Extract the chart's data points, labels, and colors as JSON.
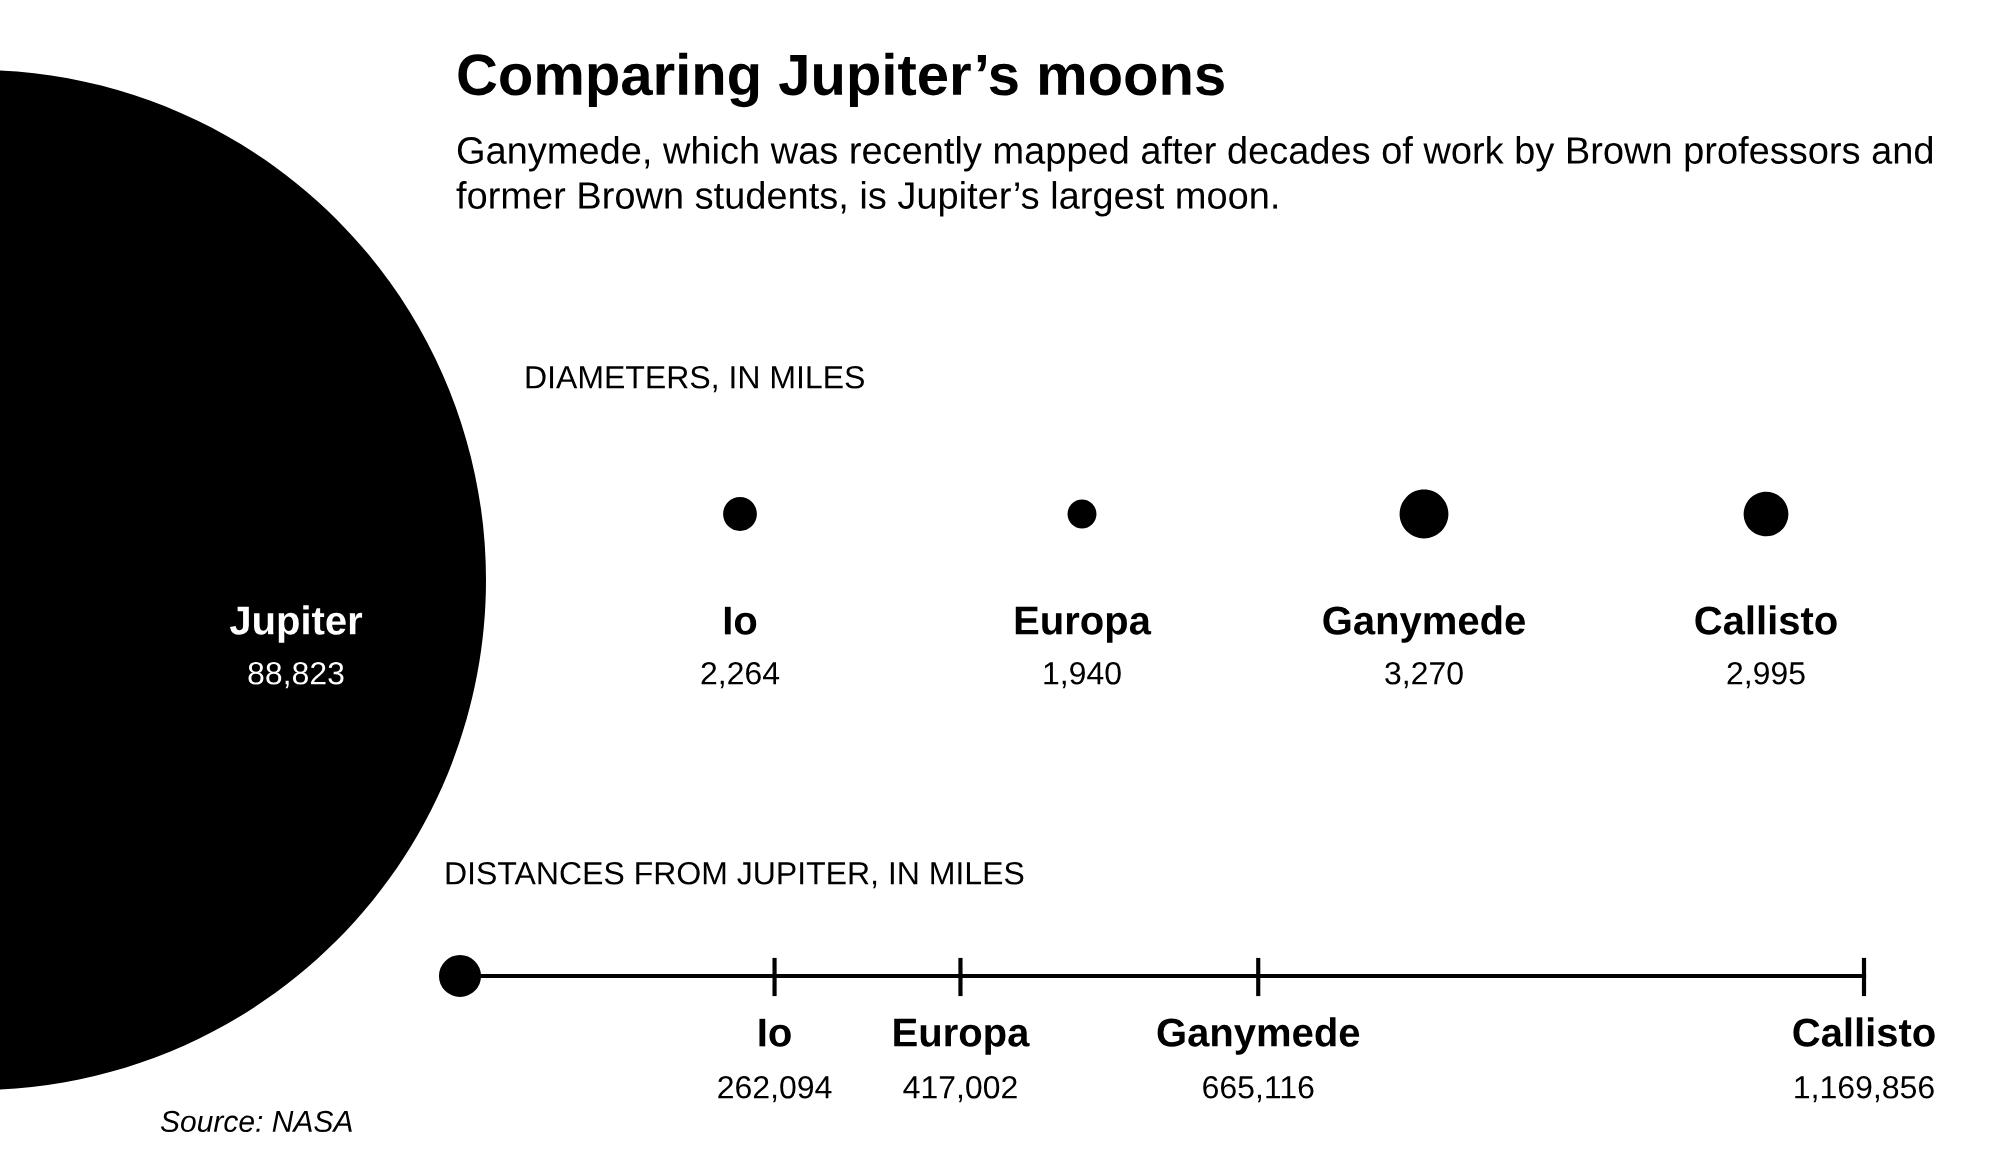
{
  "chart_data": [
    {
      "type": "other",
      "title": "Comparing Jupiter’s moons",
      "subtitle": "Ganymede, which was recently mapped after decades of work by Brown professors and former Brown students, is Jupiter’s largest moon.",
      "annotations": [
        "DIAMETERS, IN MILES"
      ],
      "categories": [
        "Jupiter",
        "Io",
        "Europa",
        "Ganymede",
        "Callisto"
      ],
      "values": [
        88823,
        2264,
        1940,
        3270,
        2995
      ],
      "value_labels": [
        "88,823",
        "2,264",
        "1,940",
        "3,270",
        "2,995"
      ],
      "colors": [
        "#000000",
        "#000000",
        "#000000",
        "#000000",
        "#000000"
      ]
    },
    {
      "type": "other",
      "title": "DISTANCES FROM JUPITER, IN MILES",
      "annotations": [
        "Source: NASA"
      ],
      "categories": [
        "Io",
        "Europa",
        "Ganymede",
        "Callisto"
      ],
      "values": [
        262094,
        417002,
        665116,
        1169856
      ],
      "value_labels": [
        "262,094",
        "417,002",
        "665,116",
        "1,169,856"
      ],
      "color": "#000000"
    }
  ]
}
